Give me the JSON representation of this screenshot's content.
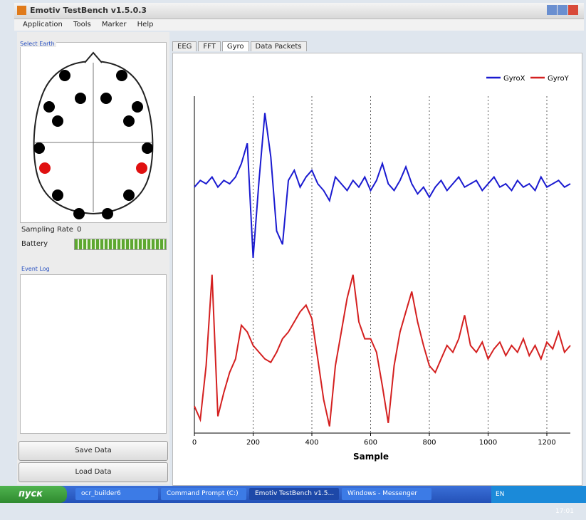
{
  "window": {
    "title": "Emotiv TestBench v1.5.0.3",
    "menu": [
      "Application",
      "Tools",
      "Marker",
      "Help"
    ],
    "headset_label": "Select Earth",
    "sampling_rate_label": "Sampling Rate",
    "sampling_rate_value": "0",
    "battery_label": "Battery",
    "event_log_label": "Event Log",
    "buttons": [
      "Save Data",
      "Load Data"
    ],
    "tabs": [
      "EEG",
      "FFT",
      "Gyro",
      "Data Packets"
    ]
  },
  "taskbar": {
    "start": "пуск",
    "tasks": [
      "ocr_builder6",
      "Command Prompt (C:)",
      "Emotiv TestBench v1.5...",
      "Windows - Messenger"
    ],
    "language": "EN",
    "clock": "17:01"
  },
  "chart_data": {
    "type": "line",
    "xlabel": "Sample",
    "x": [
      0,
      20,
      40,
      60,
      80,
      100,
      120,
      140,
      160,
      180,
      200,
      220,
      240,
      260,
      280,
      300,
      320,
      340,
      360,
      380,
      400,
      420,
      440,
      460,
      480,
      500,
      520,
      540,
      560,
      580,
      600,
      620,
      640,
      660,
      680,
      700,
      720,
      740,
      760,
      780,
      800,
      820,
      840,
      860,
      880,
      900,
      920,
      940,
      960,
      980,
      1000,
      1020,
      1040,
      1060,
      1080,
      1100,
      1120,
      1140,
      1160,
      1180,
      1200,
      1220,
      1240,
      1260,
      1280
    ],
    "series": [
      {
        "name": "GyroX",
        "color": "#1a1ad0",
        "values": [
          73,
          75,
          74,
          76,
          73,
          75,
          74,
          76,
          80,
          86,
          52,
          75,
          95,
          82,
          60,
          56,
          75,
          78,
          73,
          76,
          78,
          74,
          72,
          69,
          76,
          74,
          72,
          75,
          73,
          76,
          72,
          75,
          80,
          74,
          72,
          75,
          79,
          74,
          71,
          73,
          70,
          73,
          75,
          72,
          74,
          76,
          73,
          74,
          75,
          72,
          74,
          76,
          73,
          74,
          72,
          75,
          73,
          74,
          72,
          76,
          73,
          74,
          75,
          73,
          74
        ]
      },
      {
        "name": "GyroY",
        "color": "#d42020",
        "values": [
          8,
          4,
          20,
          47,
          5,
          12,
          18,
          22,
          32,
          30,
          26,
          24,
          22,
          21,
          24,
          28,
          30,
          33,
          36,
          38,
          34,
          22,
          10,
          2,
          20,
          30,
          40,
          47,
          33,
          28,
          28,
          24,
          14,
          3,
          20,
          30,
          36,
          42,
          33,
          26,
          20,
          18,
          22,
          26,
          24,
          28,
          35,
          26,
          24,
          27,
          22,
          25,
          27,
          23,
          26,
          24,
          28,
          23,
          26,
          22,
          27,
          25,
          30,
          24,
          26
        ]
      }
    ],
    "xlim": [
      0,
      1280
    ],
    "xticks": [
      0,
      200,
      400,
      600,
      800,
      1000,
      1200
    ],
    "ylim": [
      0,
      100
    ],
    "grid": true,
    "legend": "top-right"
  }
}
